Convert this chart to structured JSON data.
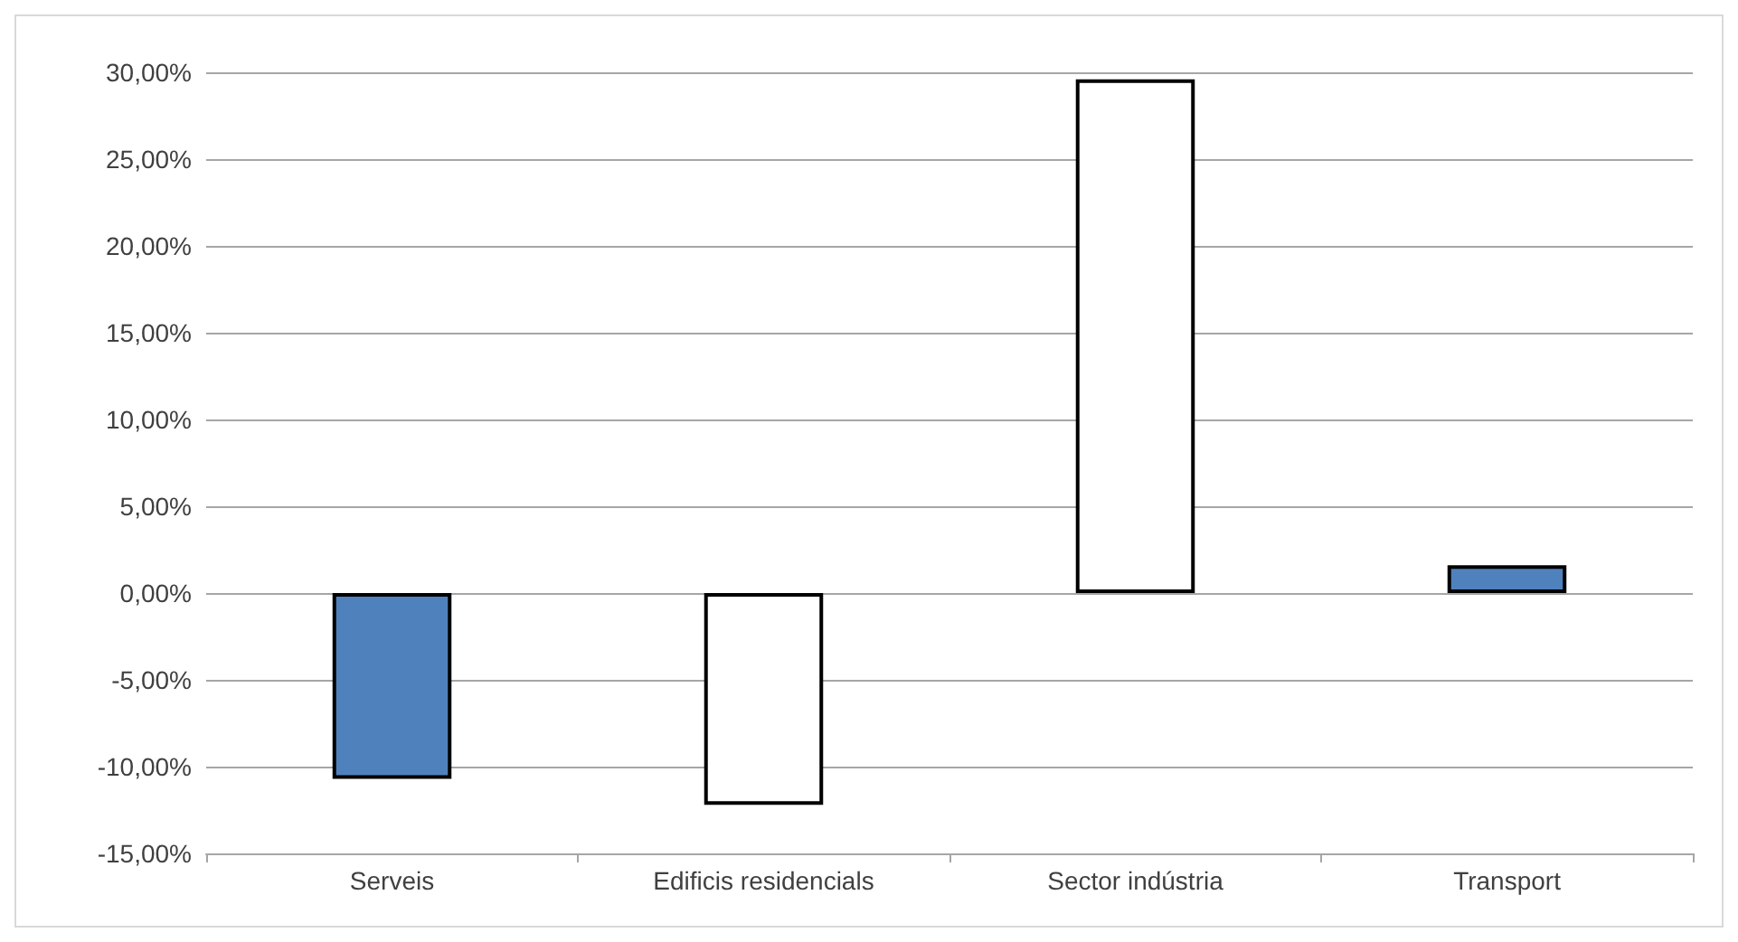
{
  "chart_data": {
    "type": "bar",
    "categories": [
      "Serveis",
      "Edificis residencials",
      "Sector indústria",
      "Transport"
    ],
    "values": [
      -10.7,
      -12.2,
      29.6,
      1.6
    ],
    "colors": [
      "#4f81bd",
      "#ffffff",
      "#ffffff",
      "#4f81bd"
    ],
    "ylim": [
      -15,
      30
    ],
    "yticks": [
      {
        "value": -15,
        "label": "-15,00%"
      },
      {
        "value": -10,
        "label": "-10,00%"
      },
      {
        "value": -5,
        "label": "-5,00%"
      },
      {
        "value": 0,
        "label": "0,00%"
      },
      {
        "value": 5,
        "label": "5,00%"
      },
      {
        "value": 10,
        "label": "10,00%"
      },
      {
        "value": 15,
        "label": "15,00%"
      },
      {
        "value": 20,
        "label": "20,00%"
      },
      {
        "value": 25,
        "label": "25,00%"
      },
      {
        "value": 30,
        "label": "30,00%"
      }
    ],
    "grid": "y"
  }
}
